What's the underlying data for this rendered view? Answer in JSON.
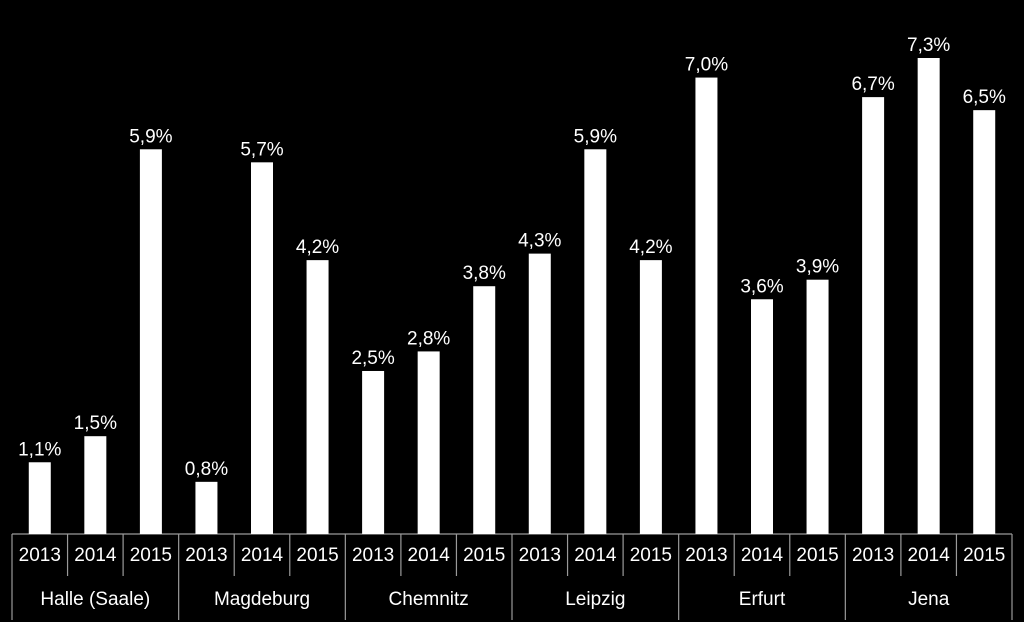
{
  "chart_data": {
    "type": "bar",
    "color": "#ffffff",
    "background": "#000000",
    "groups": [
      {
        "name": "Halle (Saale)",
        "categories": [
          "2013",
          "2014",
          "2015"
        ],
        "values": [
          1.1,
          1.5,
          5.9
        ],
        "value_labels": [
          "1,1%",
          "1,5%",
          "5,9%"
        ]
      },
      {
        "name": "Magdeburg",
        "categories": [
          "2013",
          "2014",
          "2015"
        ],
        "values": [
          0.8,
          5.7,
          4.2
        ],
        "value_labels": [
          "0,8%",
          "5,7%",
          "4,2%"
        ]
      },
      {
        "name": "Chemnitz",
        "categories": [
          "2013",
          "2014",
          "2015"
        ],
        "values": [
          2.5,
          2.8,
          3.8
        ],
        "value_labels": [
          "2,5%",
          "2,8%",
          "3,8%"
        ]
      },
      {
        "name": "Leipzig",
        "categories": [
          "2013",
          "2014",
          "2015"
        ],
        "values": [
          4.3,
          5.9,
          4.2
        ],
        "value_labels": [
          "4,3%",
          "5,9%",
          "4,2%"
        ]
      },
      {
        "name": "Erfurt",
        "categories": [
          "2013",
          "2014",
          "2015"
        ],
        "values": [
          7.0,
          3.6,
          3.9
        ],
        "value_labels": [
          "7,0%",
          "3,6%",
          "3,9%"
        ]
      },
      {
        "name": "Jena",
        "categories": [
          "2013",
          "2014",
          "2015"
        ],
        "values": [
          6.7,
          7.3,
          6.5
        ],
        "value_labels": [
          "6,7%",
          "7,3%",
          "6,5%"
        ]
      }
    ]
  }
}
